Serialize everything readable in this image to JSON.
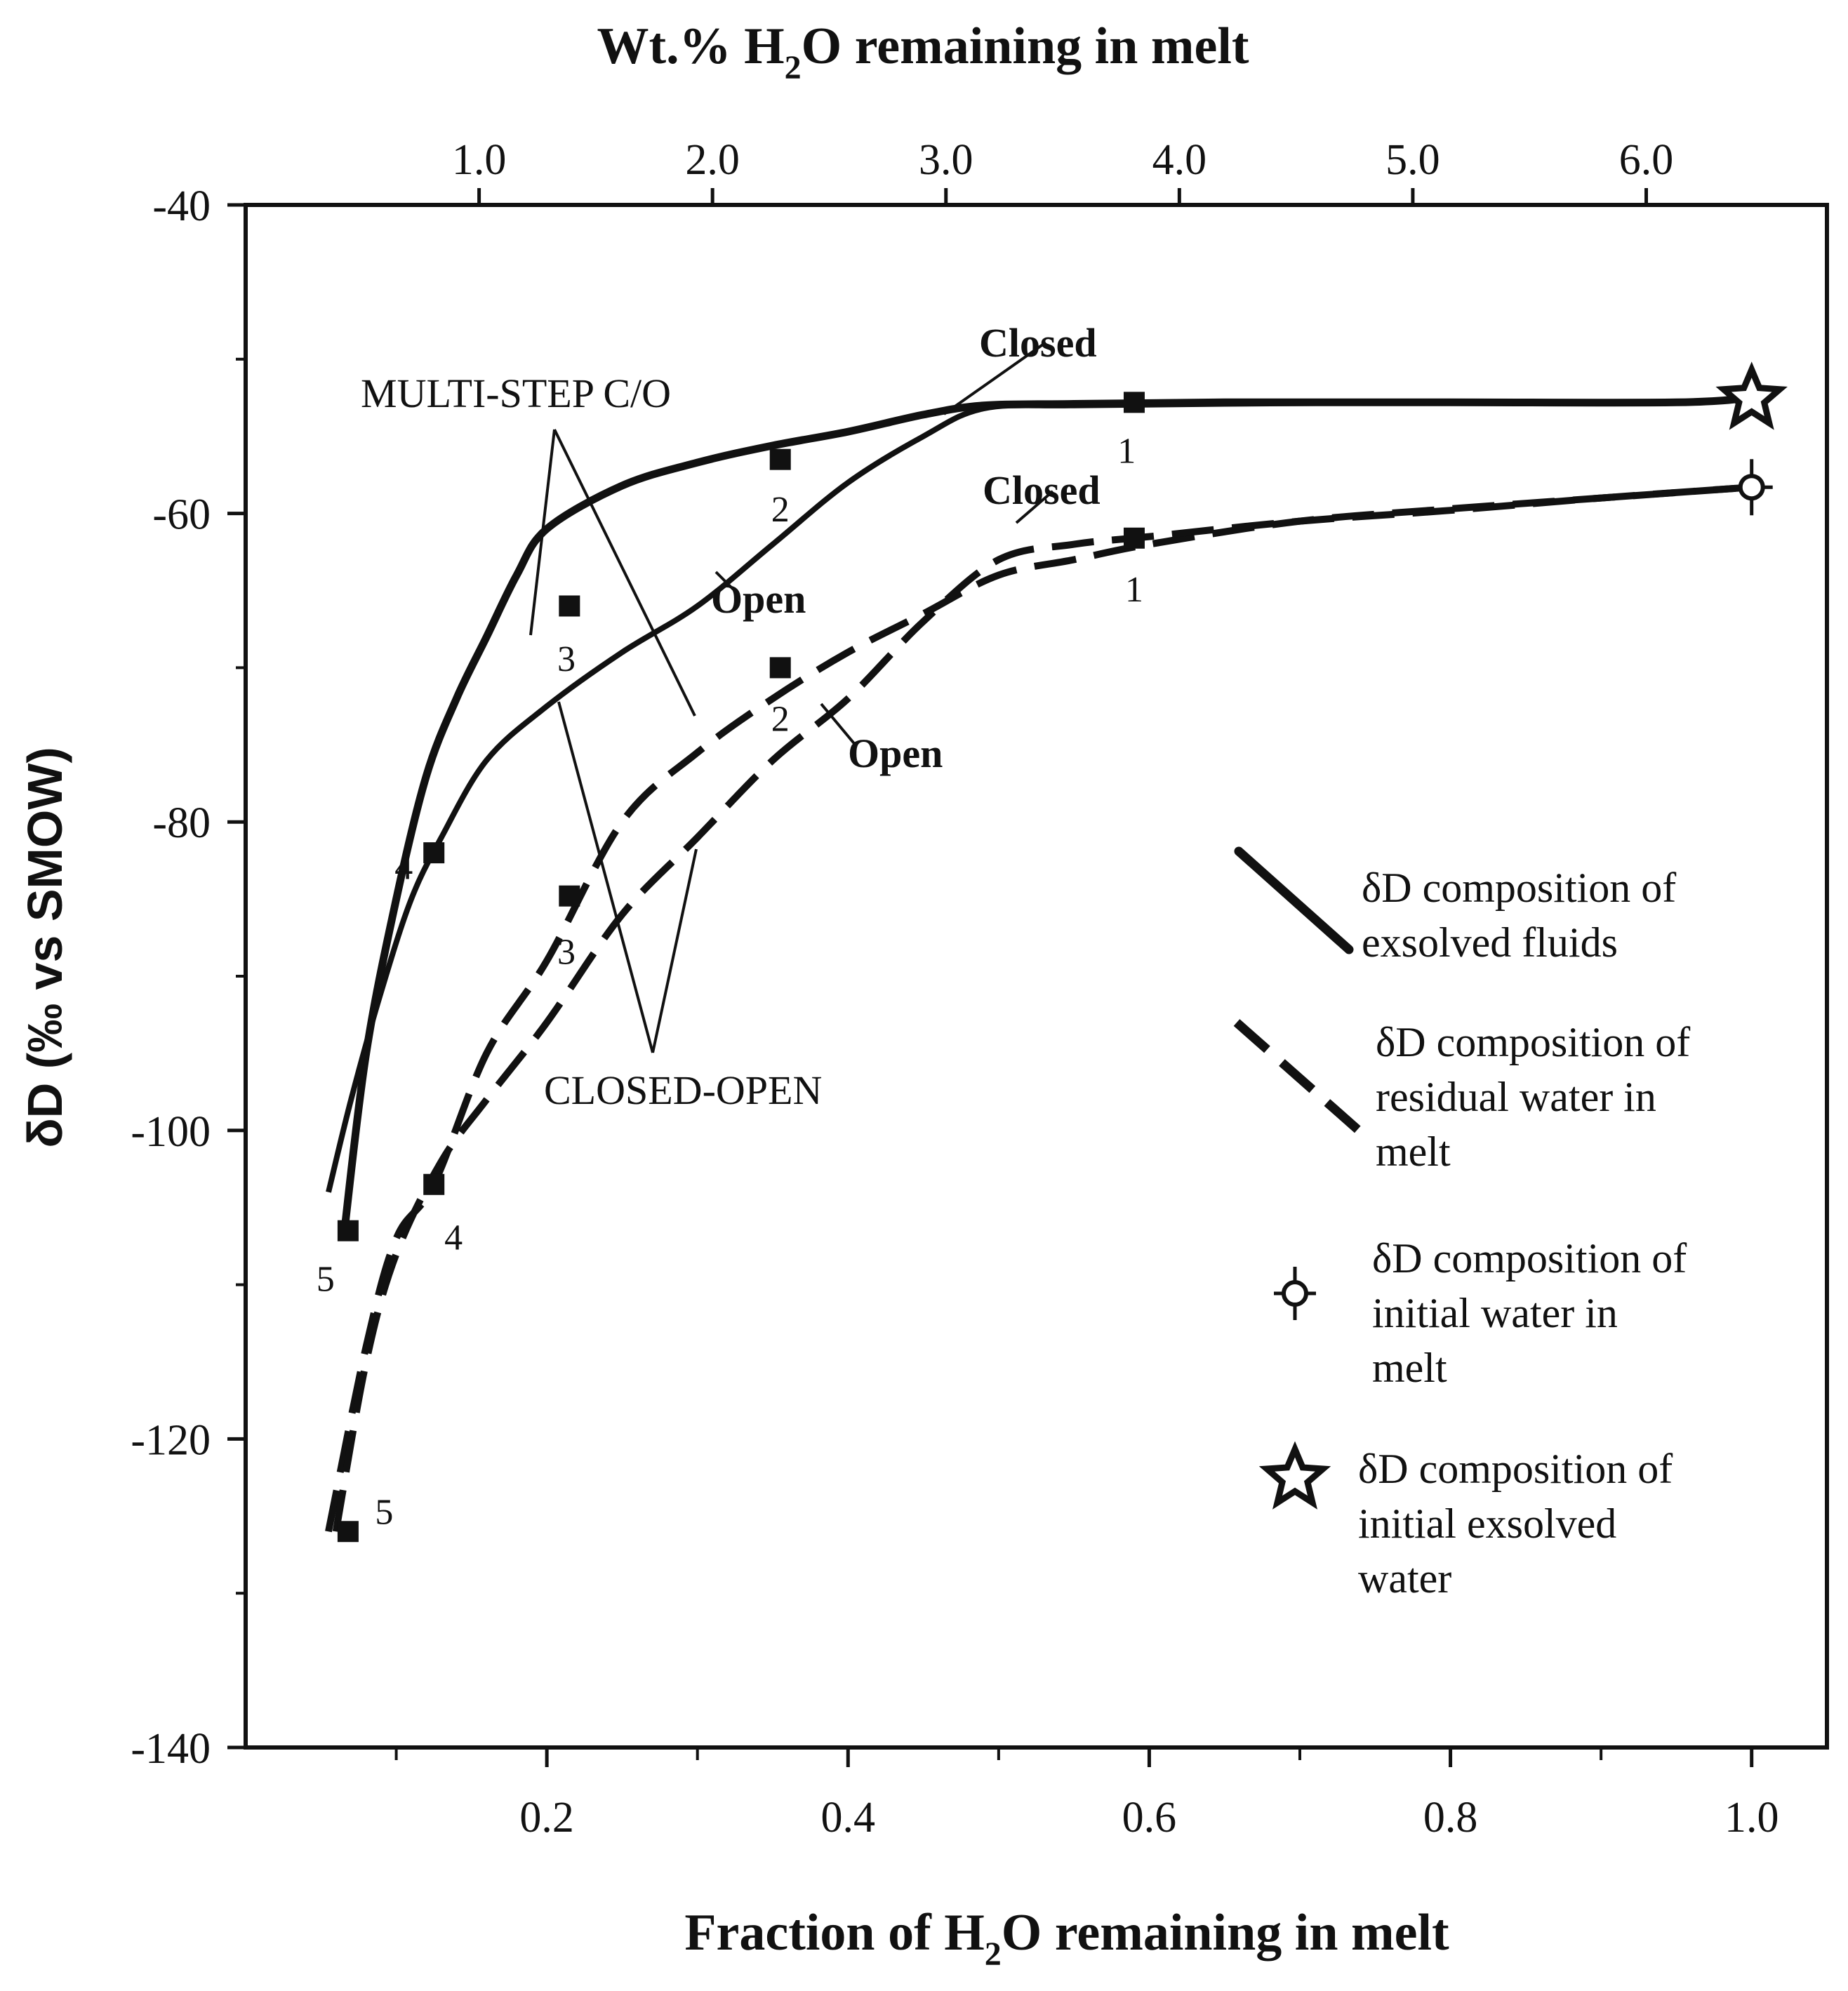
{
  "chart_data": {
    "type": "line",
    "top_title": "Wt.% H",
    "top_title_sub": "2",
    "top_title_rest": "O remaining in melt",
    "xlabel": "Fraction of H",
    "xlabel_sub": "2",
    "xlabel_rest": "O remaining in melt",
    "ylabel": "δD (‰  vs SMOW)",
    "xlim": [
      0.0,
      1.05
    ],
    "ylim": [
      -140,
      -40
    ],
    "x_ticks": [
      {
        "v": 0.2,
        "label": "0.2"
      },
      {
        "v": 0.4,
        "label": "0.4"
      },
      {
        "v": 0.6,
        "label": "0.6"
      },
      {
        "v": 0.8,
        "label": "0.8"
      },
      {
        "v": 1.0,
        "label": "1.0"
      }
    ],
    "y_ticks": [
      {
        "v": -40,
        "label": "-40"
      },
      {
        "v": -60,
        "label": "-60"
      },
      {
        "v": -80,
        "label": "-80"
      },
      {
        "v": -100,
        "label": "-100"
      },
      {
        "v": -120,
        "label": "-120"
      },
      {
        "v": -140,
        "label": "-140"
      }
    ],
    "top_ticks": [
      {
        "v": 0.155,
        "label": "1.0"
      },
      {
        "v": 0.31,
        "label": "2.0"
      },
      {
        "v": 0.465,
        "label": "3.0"
      },
      {
        "v": 0.62,
        "label": "4.0"
      },
      {
        "v": 0.775,
        "label": "5.0"
      },
      {
        "v": 0.93,
        "label": "6.0"
      }
    ],
    "series": [
      {
        "name": "Closed (exsolved fluids)",
        "style": "solid",
        "x": [
          0.065,
          0.08,
          0.1,
          0.12,
          0.14,
          0.16,
          0.18,
          0.2,
          0.25,
          0.3,
          0.35,
          0.4,
          0.45,
          0.49,
          0.55,
          0.65,
          0.8,
          0.95,
          1.0
        ],
        "y": [
          -107,
          -95,
          -85,
          -77,
          -72,
          -68,
          -64,
          -61,
          -58.2,
          -56.7,
          -55.6,
          -54.7,
          -53.6,
          -53.0,
          -52.9,
          -52.8,
          -52.8,
          -52.8,
          -52.5
        ]
      },
      {
        "name": "Open (exsolved fluids)",
        "style": "solid",
        "x": [
          0.055,
          0.07,
          0.09,
          0.11,
          0.13,
          0.16,
          0.2,
          0.25,
          0.3,
          0.35,
          0.4,
          0.45,
          0.49,
          0.55,
          0.65,
          0.8,
          0.95,
          1.0
        ],
        "y": [
          -104,
          -98,
          -91,
          -85,
          -81,
          -76,
          -72.5,
          -69,
          -66,
          -62,
          -58,
          -55,
          -53.2,
          -53.0,
          -52.9,
          -52.8,
          -52.8,
          -52.5
        ]
      },
      {
        "name": "Closed (residual water)",
        "style": "dashed",
        "x": [
          0.055,
          0.08,
          0.1,
          0.125,
          0.16,
          0.2,
          0.25,
          0.3,
          0.35,
          0.4,
          0.45,
          0.5,
          0.55,
          0.6,
          0.7,
          0.8,
          0.9,
          1.0
        ],
        "y": [
          -126,
          -114,
          -107,
          -103.5,
          -95,
          -89,
          -80,
          -75.5,
          -72,
          -69,
          -66.5,
          -64,
          -63,
          -62.0,
          -60.5,
          -59.7,
          -59.0,
          -58.3
        ]
      },
      {
        "name": "Open (residual water)",
        "style": "dashed",
        "x": [
          0.06,
          0.08,
          0.1,
          0.13,
          0.16,
          0.2,
          0.25,
          0.3,
          0.35,
          0.4,
          0.45,
          0.5,
          0.55,
          0.6,
          0.7,
          0.8,
          0.9,
          1.0
        ],
        "y": [
          -126,
          -115,
          -108,
          -102,
          -98,
          -93,
          -86,
          -81,
          -76,
          -72,
          -67,
          -63,
          -62,
          -61.5,
          -60.5,
          -59.8,
          -59.0,
          -58.3
        ]
      }
    ],
    "markers": [
      {
        "x": 0.59,
        "y": -52.8,
        "label": "1",
        "lx": 0.585,
        "ly": -55.8
      },
      {
        "x": 0.355,
        "y": -56.5,
        "label": "2",
        "lx": 0.355,
        "ly": -59.6
      },
      {
        "x": 0.215,
        "y": -66.0,
        "label": "3",
        "lx": 0.213,
        "ly": -69.3
      },
      {
        "x": 0.125,
        "y": -82.0,
        "label": "4",
        "lx": 0.105,
        "ly": -82.8
      },
      {
        "x": 0.068,
        "y": -106.5,
        "label": "5",
        "lx": 0.053,
        "ly": -109.5
      },
      {
        "x": 0.59,
        "y": -61.6,
        "label": "1",
        "lx": 0.59,
        "ly": -64.8
      },
      {
        "x": 0.355,
        "y": -70.0,
        "label": "2",
        "lx": 0.355,
        "ly": -73.2
      },
      {
        "x": 0.215,
        "y": -84.8,
        "label": "3",
        "lx": 0.213,
        "ly": -88.3
      },
      {
        "x": 0.125,
        "y": -103.5,
        "label": "4",
        "lx": 0.138,
        "ly": -106.8
      },
      {
        "x": 0.068,
        "y": -126.0,
        "label": "5",
        "lx": 0.092,
        "ly": -124.6
      }
    ],
    "annotations": {
      "closed_top": "Closed",
      "closed_bottom": "Closed",
      "open_top": "Open",
      "open_bottom": "Open",
      "multi_step": "MULTI-STEP  C/O",
      "closed_open": "CLOSED-OPEN"
    },
    "special_points": {
      "initial_water": {
        "x": 1.0,
        "y": -58.3
      },
      "initial_exsolved": {
        "x": 1.0,
        "y": -52.5
      }
    },
    "legend": [
      {
        "symbol": "solid-line",
        "lines": [
          "δD composition of",
          "exsolved fluids"
        ]
      },
      {
        "symbol": "dashed-line",
        "lines": [
          "δD composition of",
          "residual water in",
          "melt"
        ]
      },
      {
        "symbol": "circle-cross",
        "lines": [
          "δD composition of",
          "initial water in",
          "melt"
        ]
      },
      {
        "symbol": "star",
        "lines": [
          "δD composition of",
          "initial exsolved",
          "water"
        ]
      }
    ],
    "legend_position": "right",
    "grid": false,
    "colors": {
      "ink": "#111111",
      "background": "#ffffff"
    }
  }
}
